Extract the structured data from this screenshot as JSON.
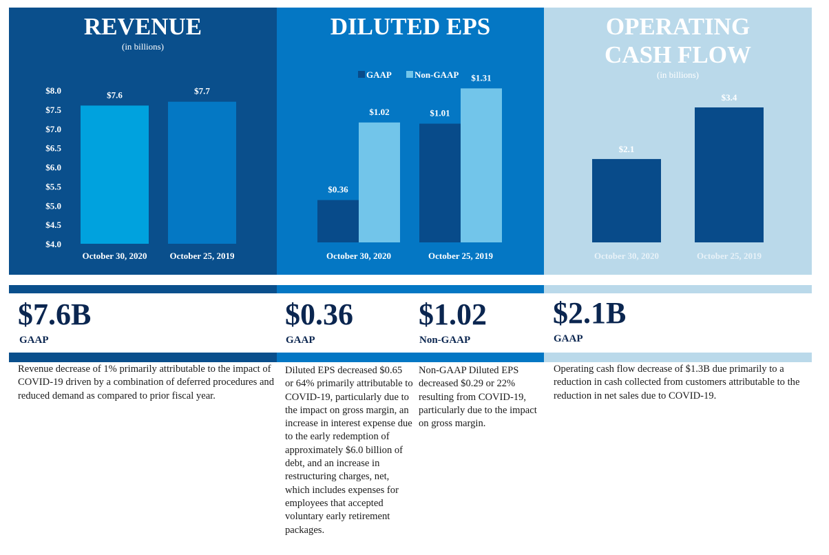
{
  "colors": {
    "revenue_panel": "#0a4f8c",
    "eps_panel": "#0477c4",
    "ocf_panel": "#bad9ea",
    "revenue_bar_2020": "#00a2de",
    "revenue_bar_2019": "#0478c4",
    "gaap_bar": "#084b8a",
    "nongaap_bar": "#72c5ea",
    "ocf_bar": "#084b8a",
    "kpi_text": "#0b2650",
    "ocf_label": "#e8f2f8"
  },
  "chart_data": [
    {
      "type": "bar",
      "title": "REVENUE",
      "subtitle": "(in billions)",
      "categories": [
        "October 30, 2020",
        "October 25, 2019"
      ],
      "values": [
        7.6,
        7.7
      ],
      "value_labels": [
        "$7.6",
        "$7.7"
      ],
      "ylim": [
        4.0,
        8.0
      ],
      "yticks": [
        "$8.0",
        "$7.5",
        "$7.0",
        "$6.5",
        "$6.0",
        "$5.5",
        "$5.0",
        "$4.5",
        "$4.0"
      ],
      "ytick_values": [
        8.0,
        7.5,
        7.0,
        6.5,
        6.0,
        5.5,
        5.0,
        4.5,
        4.0
      ]
    },
    {
      "type": "bar",
      "title": "DILUTED EPS",
      "categories": [
        "October 30, 2020",
        "October 25, 2019"
      ],
      "series": [
        {
          "name": "GAAP",
          "values": [
            0.36,
            1.01
          ],
          "value_labels": [
            "$0.36",
            "$1.01"
          ]
        },
        {
          "name": "Non-GAAP",
          "values": [
            1.02,
            1.31
          ],
          "value_labels": [
            "$1.02",
            "$1.31"
          ]
        }
      ],
      "legend": "top-center"
    },
    {
      "type": "bar",
      "title_line1": "OPERATING",
      "title_line2": "CASH FLOW",
      "subtitle": "(in billions)",
      "categories": [
        "October 30, 2020",
        "October 25, 2019"
      ],
      "values": [
        2.1,
        3.4
      ],
      "value_labels": [
        "$2.1",
        "$3.4"
      ]
    }
  ],
  "kpis": {
    "revenue": {
      "value": "$7.6B",
      "label": "GAAP",
      "description": "Revenue decrease of 1% primarily attributable to the impact of  COVID-19 driven by a combination of deferred procedures and reduced demand as compared to prior fiscal year."
    },
    "eps_gaap": {
      "value": "$0.36",
      "label": "GAAP",
      "description": "Diluted EPS decreased $0.65 or 64% primarily attributable to COVID-19, particularly due to the impact on gross margin, an increase in interest expense due to the early redemption of approximately $6.0 billion of debt, and an increase in restructuring charges, net, which includes expenses for employees that accepted voluntary early retirement packages."
    },
    "eps_nongaap": {
      "value": "$1.02",
      "label": "Non-GAAP",
      "description": "Non-GAAP Diluted EPS decreased $0.29 or 22% resulting from COVID-19, particularly due to the impact on gross margin."
    },
    "ocf": {
      "value": "$2.1B",
      "label": "GAAP",
      "description": "Operating cash flow decrease of $1.3B due primarily to a reduction in cash collected from customers attributable to the reduction in net sales due to COVID-19."
    }
  }
}
